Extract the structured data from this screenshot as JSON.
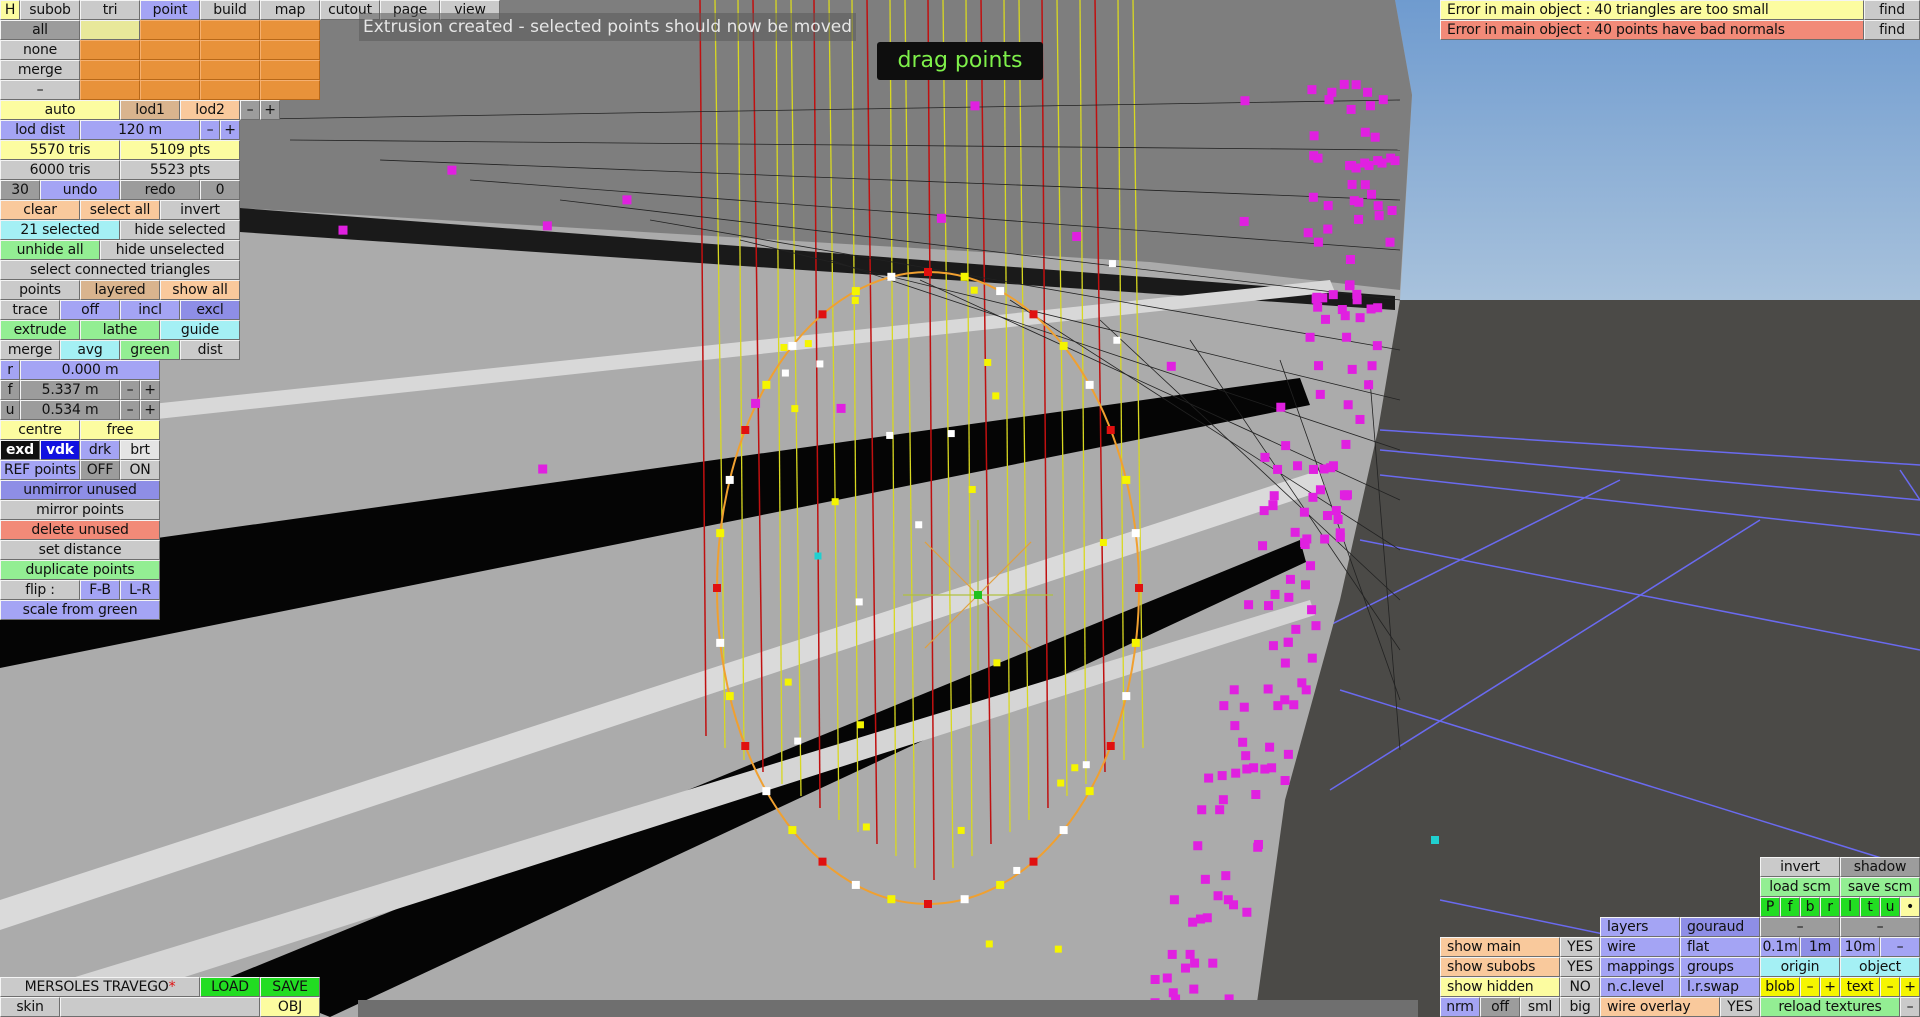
{
  "top_tabs": [
    "H",
    "subob",
    "tri",
    "point",
    "build",
    "map",
    "cutout",
    "page",
    "view"
  ],
  "active_tab": "point",
  "selection_rows": [
    "all",
    "none",
    "merge",
    "–"
  ],
  "lod": {
    "auto": "auto",
    "lod1": "lod1",
    "lod2": "lod2",
    "minus": "–",
    "plus": "+",
    "dist_label": "lod dist",
    "dist_value": "120 m"
  },
  "stats": {
    "tris_current": "5570 tris",
    "pts_current": "5109 pts",
    "tris_max": "6000 tris",
    "pts_max": "5523 pts"
  },
  "history": {
    "undo_count": "30",
    "undo": "undo",
    "redo": "redo",
    "redo_count": "0"
  },
  "select": {
    "clear": "clear",
    "select_all": "select all",
    "invert": "invert",
    "selected": "21 selected",
    "hide_selected": "hide selected",
    "unhide_all": "unhide all",
    "hide_unselected": "hide unselected",
    "select_connected": "select connected triangles"
  },
  "display": {
    "points": "points",
    "layered": "layered",
    "show_all": "show all",
    "trace": "trace",
    "off": "off",
    "incl": "incl",
    "excl": "excl"
  },
  "tools": {
    "extrude": "extrude",
    "lathe": "lathe",
    "guide": "guide",
    "merge": "merge",
    "avg": "avg",
    "green": "green",
    "dist": "dist"
  },
  "coords": {
    "r_label": "r",
    "r_value": "0.000 m",
    "f_label": "f",
    "f_value": "5.337 m",
    "u_label": "u",
    "u_value": "0.534 m",
    "minus": "–",
    "plus": "+"
  },
  "pivot": {
    "centre": "centre",
    "free": "free"
  },
  "shade": {
    "exd": "exd",
    "vdk": "vdk",
    "drk": "drk",
    "brt": "brt"
  },
  "ref": {
    "label": "REF points",
    "off": "OFF",
    "on": "ON"
  },
  "actions": {
    "unmirror": "unmirror unused",
    "mirror": "mirror points",
    "delete_unused": "delete unused",
    "set_distance": "set distance",
    "duplicate": "duplicate points",
    "flip": "flip :",
    "fb": "F-B",
    "lr": "L-R",
    "scale": "scale from green"
  },
  "status": {
    "message": "Extrusion created - selected points should now be moved",
    "mode": "drag points"
  },
  "errors": [
    {
      "text": "Error in main object : 40 triangles are too small",
      "button": "find",
      "color": "#fcfca0"
    },
    {
      "text": "Error in main object : 40 points have bad normals",
      "button": "find",
      "color": "#f28a78"
    }
  ],
  "file": {
    "name": "MERSOLES TRAVEGO",
    "modified_mark": "*",
    "load": "LOAD",
    "save": "SAVE",
    "skin": "skin",
    "skin_value": "",
    "obj": "OBJ"
  },
  "view_panel": {
    "invert": "invert",
    "shadow": "shadow",
    "load_scm": "load scm",
    "save_scm": "save scm",
    "views": [
      "P",
      "f",
      "b",
      "r",
      "l",
      "t",
      "u",
      "•"
    ],
    "layers": "layers",
    "gouraud": "gouraud",
    "dash1": "–",
    "dash2": "–",
    "show_main": "show main",
    "show_main_val": "YES",
    "wire": "wire",
    "flat": "flat",
    "grid_01": "0.1m",
    "grid_1": "1m",
    "grid_10": "10m",
    "grid_dash": "–",
    "show_subobs": "show subobs",
    "show_subobs_val": "YES",
    "mappings": "mappings",
    "groups": "groups",
    "origin": "origin",
    "object": "object",
    "show_hidden": "show hidden",
    "show_hidden_val": "NO",
    "nclevel": "n.c.level",
    "lrswap": "l.r.swap",
    "blob": "blob",
    "blob_minus": "–",
    "blob_plus": "+",
    "text": "text",
    "text_minus": "–",
    "text_plus": "+",
    "nrm": "nrm",
    "off": "off",
    "sml": "sml",
    "big": "big",
    "wire_overlay": "wire overlay",
    "wire_overlay_val": "YES",
    "reload": "reload textures",
    "reload_dash": "–"
  },
  "colors": {
    "sky": "#86a9d2",
    "ground": "#4b4a47",
    "body": "#a9a9a9",
    "point_selected": "#f5f500",
    "point_unselected": "#e020e0",
    "outline": "#f0a030",
    "wire_red": "#c01010",
    "grid": "#6a6af0"
  }
}
